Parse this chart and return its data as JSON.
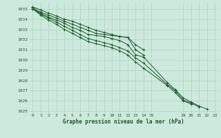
{
  "bg_color": "#cde8dc",
  "grid_color": "#a8d5c2",
  "line_color": "#1a5c2a",
  "marker_color": "#1a5c2a",
  "xlabel": "Graphe pression niveau de la mer (hPa)",
  "ylim": [
    1024.8,
    1035.6
  ],
  "yticks": [
    1025,
    1026,
    1027,
    1028,
    1029,
    1030,
    1031,
    1032,
    1033,
    1034,
    1035
  ],
  "xlim": [
    -0.5,
    23.5
  ],
  "xticks": [
    0,
    1,
    2,
    3,
    4,
    5,
    6,
    7,
    8,
    9,
    10,
    11,
    12,
    13,
    14,
    15,
    19,
    20,
    21,
    22,
    23
  ],
  "series": [
    [
      1035.2,
      1034.9,
      1034.6,
      1034.3,
      1034.0,
      1033.8,
      1033.5,
      1033.2,
      1032.9,
      1032.7,
      1032.5,
      1032.3,
      1032.2,
      1031.5,
      1031.0,
      null,
      null,
      null,
      null,
      null,
      null,
      null,
      null,
      null
    ],
    [
      1035.1,
      1034.7,
      1034.4,
      1034.1,
      1033.8,
      1033.5,
      1033.2,
      1032.9,
      1032.6,
      1032.5,
      1032.4,
      1032.3,
      1032.2,
      1031.0,
      1030.5,
      null,
      null,
      null,
      null,
      null,
      null,
      null,
      null,
      null
    ],
    [
      1035.0,
      1034.6,
      1034.2,
      1033.9,
      1033.6,
      1033.2,
      1032.9,
      1032.5,
      1032.4,
      1032.3,
      1032.1,
      1031.9,
      1031.5,
      1030.5,
      1030.3,
      null,
      null,
      1027.8,
      1027.1,
      1026.3,
      1025.9,
      1025.5,
      1025.2,
      null
    ],
    [
      1035.0,
      1034.5,
      1034.1,
      1033.7,
      1033.3,
      1032.9,
      1032.5,
      1032.1,
      1031.9,
      1031.7,
      1031.5,
      1031.2,
      1030.9,
      1030.2,
      1029.7,
      null,
      null,
      1027.6,
      1027.0,
      1026.1,
      1025.8,
      1025.4,
      null,
      null
    ],
    [
      1035.0,
      1034.4,
      1033.9,
      1033.5,
      1033.0,
      1032.6,
      1032.2,
      1031.8,
      1031.6,
      1031.4,
      1031.2,
      1030.9,
      1030.5,
      1029.8,
      1029.2,
      null,
      null,
      1027.5,
      1026.8,
      1026.0,
      1025.7,
      null,
      null,
      null
    ]
  ]
}
